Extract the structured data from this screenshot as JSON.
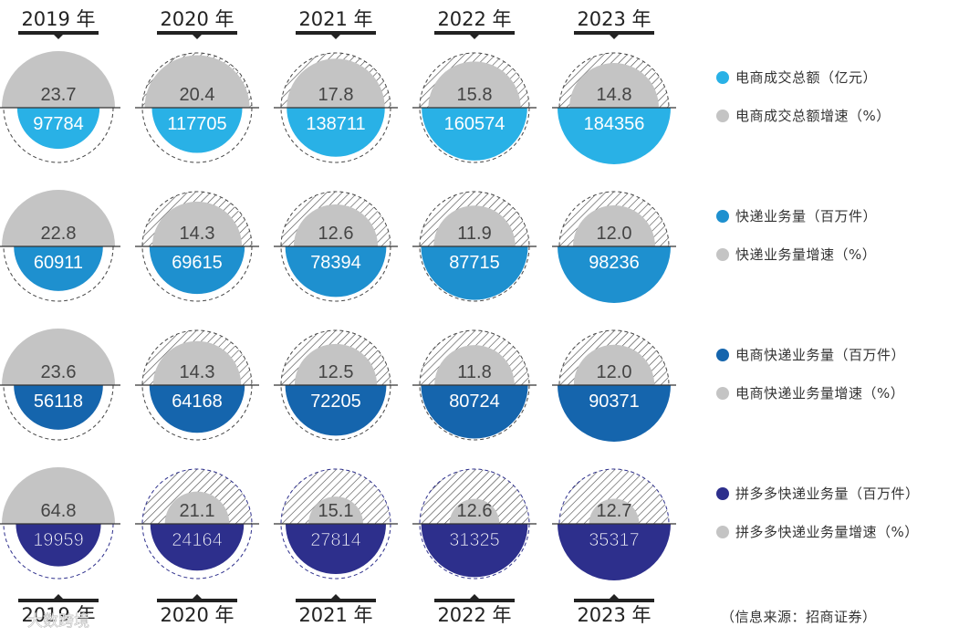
{
  "chart_data": {
    "type": "proportional-semicircles",
    "years_top": [
      "2019 年",
      "2020 年",
      "2021 年",
      "2022 年",
      "2023 年"
    ],
    "years_bottom": [
      "2019 年",
      "2020 年",
      "2021 年",
      "2022 年",
      "2023 年"
    ],
    "rows": [
      {
        "name": "电商成交总额（亿元）",
        "growth_name": "电商成交总额增速（%）",
        "color": "#29b1e6",
        "values": [
          97784,
          117705,
          138711,
          160574,
          184356
        ],
        "growth": [
          23.7,
          20.4,
          17.8,
          15.8,
          14.8
        ]
      },
      {
        "name": "快递业务量（百万件）",
        "growth_name": "快递业务量增速（%）",
        "color": "#1e90cf",
        "values": [
          60911,
          69615,
          78394,
          87715,
          98236
        ],
        "growth": [
          22.8,
          14.3,
          12.6,
          11.9,
          12.0
        ]
      },
      {
        "name": "电商快递业务量（百万件）",
        "growth_name": "电商快递业务量增速（%）",
        "color": "#1565ad",
        "values": [
          56118,
          64168,
          72205,
          80724,
          90371
        ],
        "growth": [
          23.6,
          14.3,
          12.5,
          11.8,
          12.0
        ]
      },
      {
        "name": "拼多多快递业务量（百万件）",
        "growth_name": "拼多多快递业务量增速（%）",
        "color": "#2d2f8c",
        "values": [
          19959,
          24164,
          27814,
          31325,
          35317
        ],
        "growth": [
          64.8,
          21.1,
          15.1,
          12.6,
          12.7
        ]
      }
    ],
    "growth_color": "#c4c4c4",
    "source": "（信息来源：招商证券）"
  },
  "watermark": "大数跨境"
}
